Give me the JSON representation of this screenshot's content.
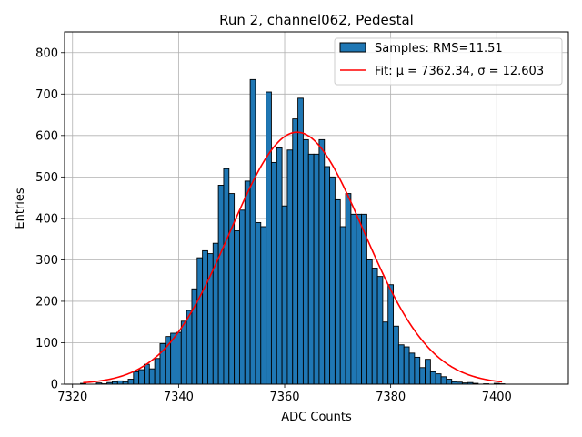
{
  "chart_data": {
    "type": "bar",
    "title": "Run 2, channel062, Pedestal",
    "xlabel": "ADC Counts",
    "ylabel": "Entries",
    "xlim": [
      7318.5,
      7413.5
    ],
    "ylim": [
      0,
      850
    ],
    "xticks": [
      7320,
      7340,
      7360,
      7380,
      7400
    ],
    "yticks": [
      0,
      100,
      200,
      300,
      400,
      500,
      600,
      700,
      800
    ],
    "grid": true,
    "legend_position": "top-right",
    "bar_color": "#1f77b4",
    "fit_color": "#ff0000",
    "bin_width": 1,
    "x": [
      7322,
      7323,
      7324,
      7325,
      7326,
      7327,
      7328,
      7329,
      7330,
      7331,
      7332,
      7333,
      7334,
      7335,
      7336,
      7337,
      7338,
      7339,
      7340,
      7341,
      7342,
      7343,
      7344,
      7345,
      7346,
      7347,
      7348,
      7349,
      7350,
      7351,
      7352,
      7353,
      7354,
      7355,
      7356,
      7357,
      7358,
      7359,
      7360,
      7361,
      7362,
      7363,
      7364,
      7365,
      7366,
      7367,
      7368,
      7369,
      7370,
      7371,
      7372,
      7373,
      7374,
      7375,
      7376,
      7377,
      7378,
      7379,
      7380,
      7381,
      7382,
      7383,
      7384,
      7385,
      7386,
      7387,
      7388,
      7389,
      7390,
      7391,
      7392,
      7393,
      7394,
      7395,
      7396,
      7397,
      7398,
      7399,
      7400,
      7401
    ],
    "values": [
      2,
      0,
      0,
      3,
      1,
      4,
      6,
      8,
      6,
      12,
      30,
      35,
      48,
      37,
      62,
      98,
      115,
      123,
      125,
      152,
      178,
      230,
      305,
      322,
      315,
      340,
      480,
      520,
      460,
      370,
      420,
      490,
      735,
      390,
      380,
      705,
      535,
      570,
      430,
      565,
      640,
      690,
      590,
      555,
      555,
      590,
      525,
      500,
      445,
      380,
      460,
      410,
      410,
      410,
      300,
      280,
      260,
      150,
      240,
      140,
      95,
      90,
      75,
      65,
      40,
      60,
      30,
      25,
      18,
      12,
      6,
      5,
      3,
      4,
      2,
      0,
      1,
      0,
      2,
      1
    ],
    "series": [
      {
        "name": "Samples: RMS=11.51",
        "type": "histogram"
      },
      {
        "name": "Fit: μ = 7362.34, σ = 12.603",
        "type": "line",
        "mu": 7362.34,
        "sigma": 12.603,
        "amplitude": 608,
        "x_range": [
          7322,
          7401
        ]
      }
    ]
  }
}
